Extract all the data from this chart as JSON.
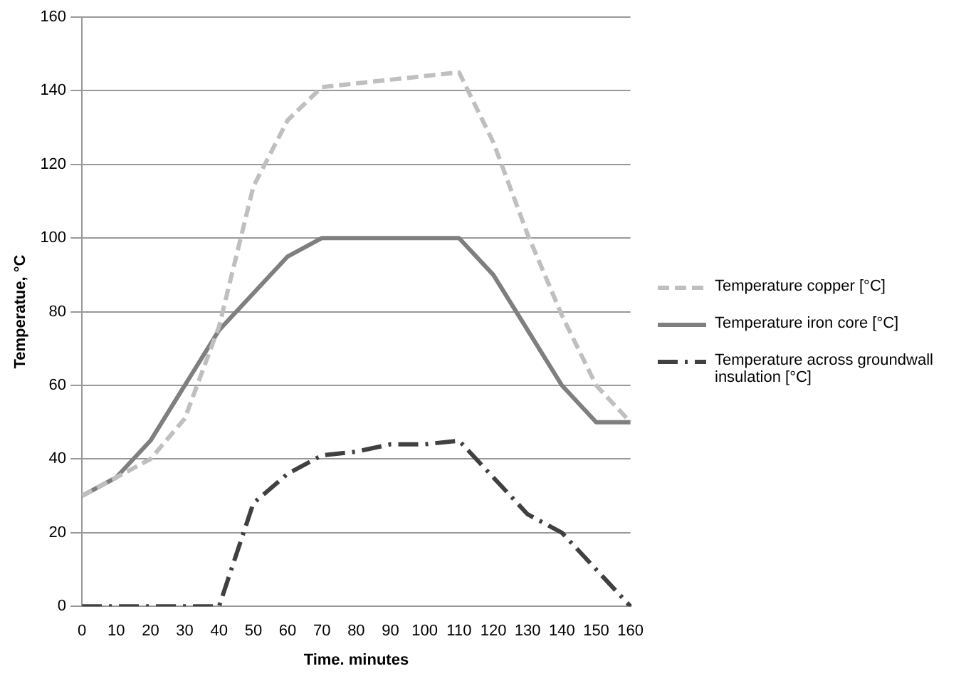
{
  "chart_data": {
    "type": "line",
    "xlabel": "Time. minutes",
    "ylabel": "Temperatue, °C",
    "categories": [
      "0",
      "10",
      "20",
      "30",
      "40",
      "50",
      "60",
      "70",
      "80",
      "90",
      "100",
      "110",
      "120",
      "130",
      "140",
      "150",
      "160"
    ],
    "ylim": [
      0,
      160
    ],
    "yticks": [
      0,
      20,
      40,
      60,
      80,
      100,
      120,
      140,
      160
    ],
    "grid": "y",
    "legend": "right",
    "marker": "none",
    "series": [
      {
        "name": "Temperature copper [°C]",
        "color": "#bfbfbf",
        "line_style": "dashed",
        "values": [
          30,
          35,
          40,
          51,
          76,
          114,
          132,
          141,
          142,
          143,
          144,
          145,
          126,
          101,
          79,
          60,
          50
        ]
      },
      {
        "name": "Temperature iron core [°C]",
        "color": "#7f7f7f",
        "line_style": "solid",
        "values": [
          30,
          35,
          45,
          60,
          75,
          85,
          95,
          100,
          100,
          100,
          100,
          100,
          90,
          75,
          60,
          50,
          50
        ]
      },
      {
        "name": "Temperature across groundwall insulation [°C]",
        "color": "#404040",
        "line_style": "dashdot",
        "values": [
          0,
          0,
          0,
          0,
          0,
          28,
          36,
          41,
          42,
          44,
          44,
          45,
          35,
          25,
          20,
          10,
          0
        ]
      }
    ]
  }
}
